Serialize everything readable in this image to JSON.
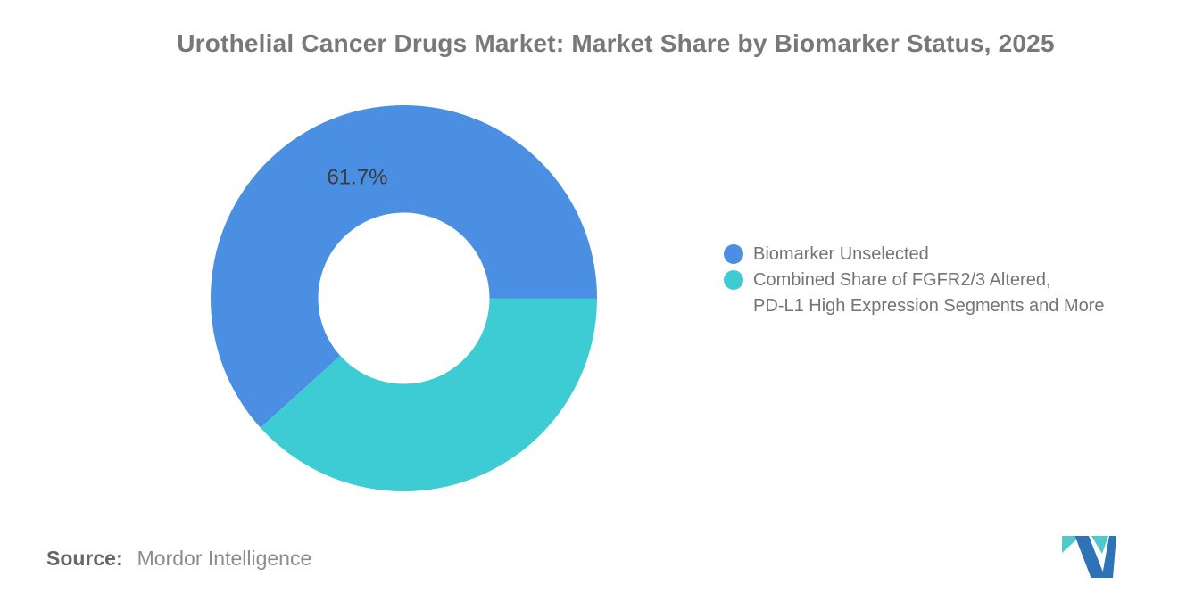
{
  "title": "Urothelial Cancer Drugs Market: Market Share by Biomarker Status, 2025",
  "chart_data": {
    "type": "pie",
    "subtype": "donut",
    "title": "Urothelial Cancer Drugs Market: Market Share by Biomarker Status, 2025",
    "inner_radius_pct": 44,
    "start_angle_deg": 0,
    "direction": "counterclockwise",
    "legend_position": "right",
    "slices": [
      {
        "label": "Biomarker Unselected",
        "value": 61.7,
        "color": "#4B8FE2",
        "data_label": "61.7%"
      },
      {
        "label": "Combined Share of FGFR2/3 Altered, PD-L1 High Expression Segments and More",
        "value": 38.3,
        "color": "#3ECCD4",
        "data_label": ""
      }
    ]
  },
  "legend": {
    "items": [
      {
        "label": "Biomarker Unselected",
        "color": "#4B8FE2"
      },
      {
        "line1": "Combined Share of FGFR2/3 Altered,",
        "line2": "PD-L1 High Expression Segments and More",
        "color": "#3ECCD4"
      }
    ]
  },
  "footer": {
    "source_label": "Source:",
    "source_value": "Mordor Intelligence"
  },
  "colors": {
    "slice_blue": "#4B8FE2",
    "slice_teal": "#3ECCD4",
    "title_text": "#787878",
    "legend_text": "#747474",
    "data_label_text": "#3B3B3B",
    "logo_blue": "#2E72B8",
    "logo_teal": "#4FC9CE"
  }
}
